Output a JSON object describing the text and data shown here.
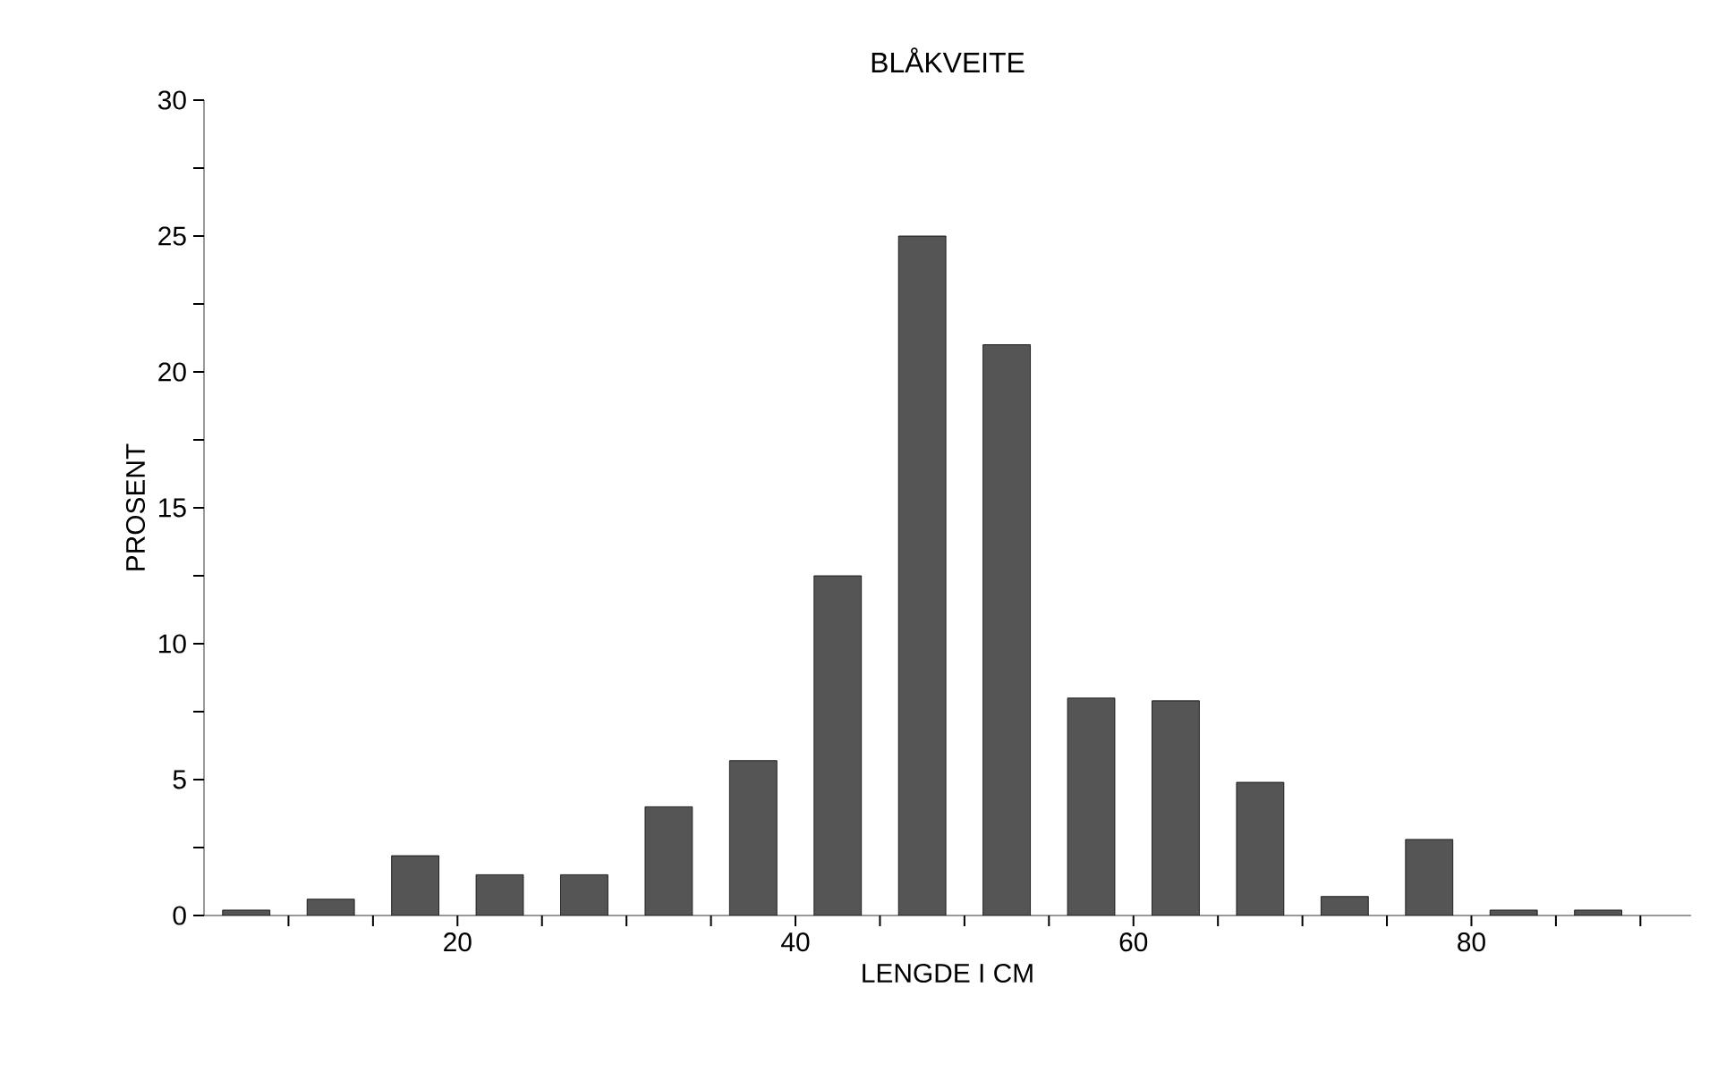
{
  "chart_data": {
    "type": "bar",
    "title": "BLÅKVEITE",
    "xlabel": "LENGDE I CM",
    "ylabel": "PROSENT",
    "x": [
      7.5,
      12.5,
      17.5,
      22.5,
      27.5,
      32.5,
      37.5,
      42.5,
      47.5,
      52.5,
      57.5,
      62.5,
      67.5,
      72.5,
      77.5,
      82.5,
      87.5
    ],
    "values": [
      0.2,
      0.6,
      2.2,
      1.5,
      1.5,
      4.0,
      5.7,
      12.5,
      25.0,
      21.0,
      8.0,
      7.9,
      4.9,
      0.7,
      2.8,
      0.2,
      0.2
    ],
    "color": "#555555",
    "xlim": [
      5,
      93
    ],
    "ylim": [
      0,
      30
    ],
    "xticks": [
      {
        "value": 10,
        "label": null
      },
      {
        "value": 15,
        "label": null
      },
      20,
      {
        "value": 25,
        "label": null
      },
      {
        "value": 30,
        "label": null
      },
      {
        "value": 35,
        "label": null
      },
      40,
      {
        "value": 45,
        "label": null
      },
      {
        "value": 50,
        "label": null
      },
      {
        "value": 55,
        "label": null
      },
      60,
      {
        "value": 65,
        "label": null
      },
      {
        "value": 70,
        "label": null
      },
      {
        "value": 75,
        "label": null
      },
      80,
      {
        "value": 85,
        "label": null
      },
      {
        "value": 90,
        "label": null
      }
    ],
    "yticks": [
      0,
      {
        "value": 2.5,
        "label": null
      },
      5,
      {
        "value": 7.5,
        "label": null
      },
      10,
      {
        "value": 12.5,
        "label": null
      },
      15,
      {
        "value": 17.5,
        "label": null
      },
      20,
      {
        "value": 22.5,
        "label": null
      },
      25,
      {
        "value": 27.5,
        "label": null
      },
      30
    ]
  }
}
